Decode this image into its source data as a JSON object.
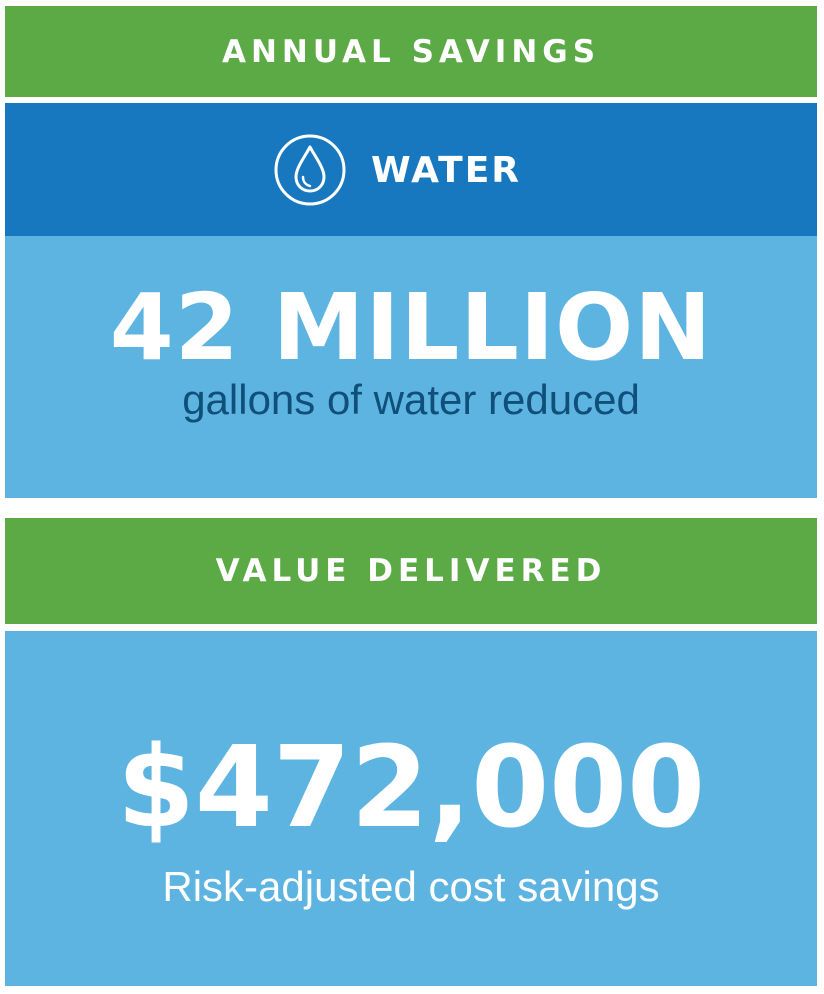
{
  "annual_savings": {
    "title": "ANNUAL SAVINGS"
  },
  "water": {
    "icon": "water-drop-icon",
    "label": "WATER",
    "amount": "42 MILLION",
    "caption": "gallons of water reduced"
  },
  "value_delivered": {
    "title": "VALUE DELIVERED",
    "amount": "$472,000",
    "caption": "Risk-adjusted cost savings"
  },
  "colors": {
    "green": "#5baa45",
    "dark_blue": "#1778bf",
    "light_blue": "#5db4e1",
    "caption_navy": "#0f4f79",
    "white": "#ffffff"
  }
}
